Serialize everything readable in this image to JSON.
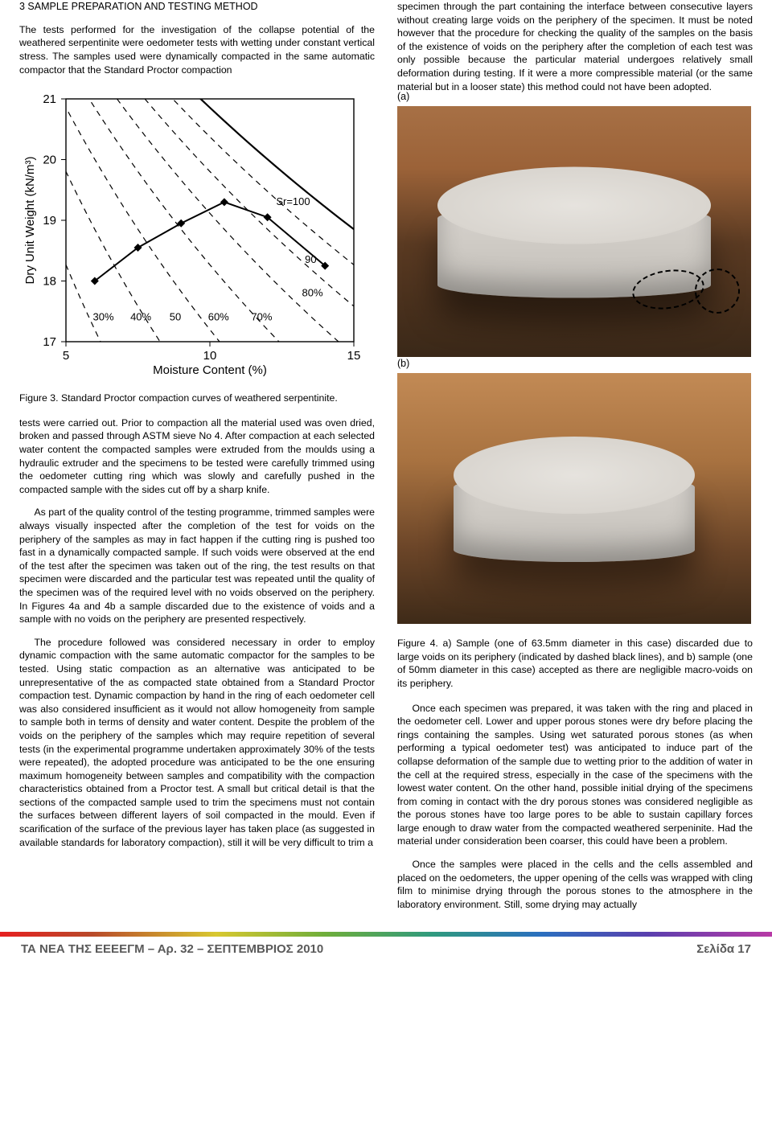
{
  "heading": "3 SAMPLE PREPARATION AND TESTING METHOD",
  "p1_left": "The tests performed for the investigation of the collapse potential of the weathered serpentinite were oedometer tests with wetting under constant vertical stress. The samples used were dynamically compacted in the same automatic compactor that the Standard Proctor compaction",
  "fig3_caption": "Figure 3. Standard Proctor compaction curves of weathered serpentinite.",
  "p2_left": "tests were carried out. Prior to compaction all the material used was oven dried, broken and passed through ASTM sieve No 4. After compaction at each selected water content the compacted samples were extruded from the moulds using a hydraulic extruder and the specimens to be tested were carefully trimmed using the oedometer cutting ring which was slowly and carefully pushed in the compacted sample with the sides cut off by a sharp knife.",
  "p3_left": "As part of the quality control of the testing programme, trimmed samples were always visually inspected after the completion of the test for voids on the periphery of the samples as may in fact happen if the cutting ring is pushed too fast in a dynamically compacted sample. If such voids were observed at the end of the test after the specimen was taken out of the ring, the test results on that specimen were discarded and the particular test was repeated until the quality of the specimen was of the required level with no voids observed on the periphery. In Figures 4a and 4b a sample discarded due to the existence of voids and a sample with no voids on the periphery are presented respectively.",
  "p4_left": "The procedure followed was considered necessary in order to employ dynamic compaction with the same automatic compactor for the samples to be tested. Using static compaction as an alternative was anticipated to be unrepresentative of the as compacted state obtained from a Standard Proctor compaction test. Dynamic compaction by hand in the ring of each oedometer cell was also considered insufficient as it would not allow homogeneity from sample to sample both in terms of density and water content. Despite the problem of the voids on the periphery of the samples which may require repetition of several tests (in the experimental programme undertaken approximately 30% of the tests were repeated), the adopted procedure was anticipated to be the one ensuring maximum homogeneity between samples and compatibility with the compaction characteristics obtained from a Proctor test. A small but critical detail is that the sections of the compacted sample used to trim the specimens must not contain the surfaces between different layers of soil compacted in the mould. Even if scarification of the surface of the previous layer has taken place (as suggested in available standards for laboratory compaction), still it will be very difficult to trim a",
  "p1_right": "specimen through the part containing the interface between consecutive layers without creating large voids on the periphery of the specimen. It must be noted however that the procedure for checking the quality of the samples on the basis of the existence of voids on the periphery after the completion of each test was only possible because the particular material undergoes relatively small deformation during testing. If it were a more compressible material (or the same material but in a looser state) this method could not have been adopted.",
  "fig4_caption": "Figure 4. a) Sample (one of 63.5mm diameter in this case) discarded due to large voids on its periphery (indicated by dashed black lines), and b) sample (one of 50mm diameter in this case) accepted as there are negligible macro-voids on its periphery.",
  "p2_right": "Once each specimen was prepared, it was taken with the ring and placed in the oedometer cell. Lower and upper porous stones were dry before placing the rings containing the samples. Using wet saturated porous stones (as when performing a typical oedometer test) was anticipated to induce part of the collapse deformation of the sample due to wetting prior to the addition of water in the cell at the required stress, especially in the case of the specimens with the lowest water content. On the other hand, possible initial drying of the specimens from coming in contact with the dry porous stones was considered negligible as the porous stones have too large pores to be able to sustain capillary forces large enough to draw water from the compacted weathered serpeninite. Had the material under consideration been coarser, this could have been a problem.",
  "p3_right": "Once the samples were placed in the cells and the cells assembled and placed on the oedometers, the upper opening of the cells was wrapped with cling film to minimise drying through the porous stones to the atmosphere in the laboratory environment. Still, some drying may actually",
  "label_a": "(a)",
  "label_b": "(b)",
  "chart": {
    "type": "line+scatter",
    "xlabel": "Moisture Content (%)",
    "ylabel": "Dry Unit Weight (kN/m³)",
    "xlim": [
      5,
      15
    ],
    "xticks": [
      5,
      10,
      15
    ],
    "ylim": [
      17,
      21
    ],
    "yticks": [
      17,
      18,
      19,
      20,
      21
    ],
    "series_x": [
      6.0,
      7.5,
      9.0,
      10.5,
      12.0,
      14.0
    ],
    "series_y": [
      18.0,
      18.55,
      18.95,
      19.3,
      19.05,
      18.25
    ],
    "marker": "diamond",
    "marker_fill": "#000000",
    "marker_size": 10,
    "line_color": "#000000",
    "line_width": 2,
    "saturation_lines_pct": [
      30,
      40,
      50,
      60,
      70,
      80,
      90,
      100
    ],
    "saturation_line_style": "dashed",
    "saturation_line_color": "#000000",
    "sr_label": "Sr=100",
    "sat_dash_stroke": 1.2,
    "axis_color": "#000000",
    "font_size_axis": 15,
    "font_size_ticks": 15,
    "background": "#ffffff"
  },
  "footer_left": "ΤΑ ΝΕΑ ΤΗΣ ΕΕΕΕΓΜ – Αρ. 32 – ΣΕΠΤΕΜΒΡΙΟΣ 2010",
  "footer_right": "Σελίδα 17"
}
